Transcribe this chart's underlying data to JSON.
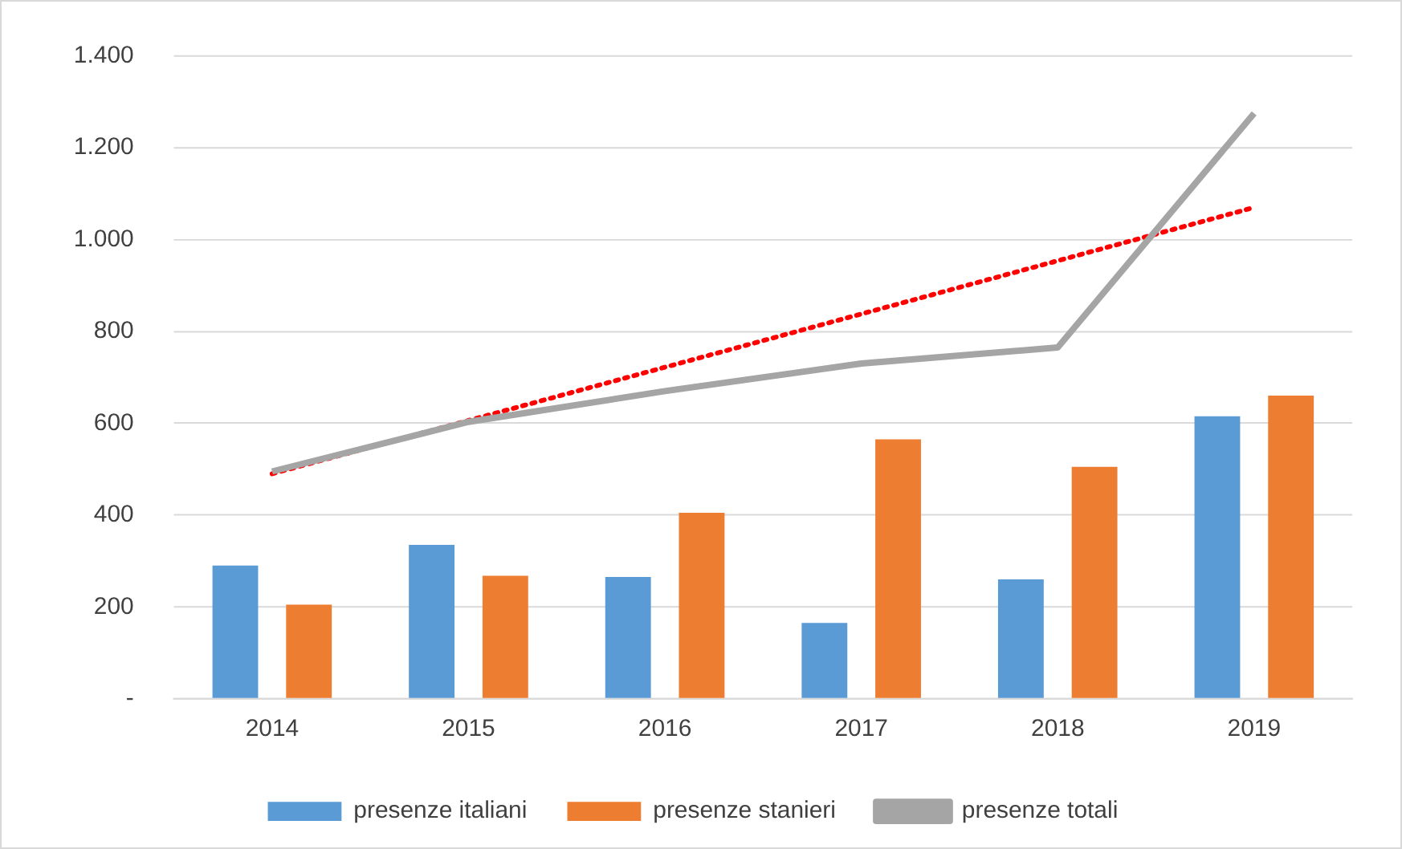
{
  "chart_data": {
    "type": "bar",
    "categories": [
      "2014",
      "2015",
      "2016",
      "2017",
      "2018",
      "2019"
    ],
    "series": [
      {
        "name": "presenze italiani",
        "color": "#5b9bd5",
        "values": [
          290,
          335,
          265,
          165,
          260,
          615
        ]
      },
      {
        "name": "presenze stanieri",
        "color": "#ed7d31",
        "values": [
          205,
          268,
          405,
          565,
          505,
          660
        ]
      },
      {
        "name": "presenze totali",
        "type": "line",
        "color": "#a5a5a5",
        "values": [
          495,
          603,
          670,
          730,
          765,
          1275
        ]
      },
      {
        "type": "line",
        "color": "#ff0000",
        "line_style": "dotted",
        "values": [
          490,
          606,
          722,
          838,
          954,
          1070
        ]
      }
    ],
    "ylim": [
      0,
      1400
    ],
    "yticks": [
      {
        "value": 0,
        "label": "-"
      },
      200,
      400,
      600,
      800,
      {
        "value": 1000,
        "label": "1.000"
      },
      {
        "value": 1200,
        "label": "1.200"
      },
      {
        "value": 1400,
        "label": "1.400"
      }
    ],
    "grid": "y",
    "legend": "bottom",
    "marker": "none"
  }
}
